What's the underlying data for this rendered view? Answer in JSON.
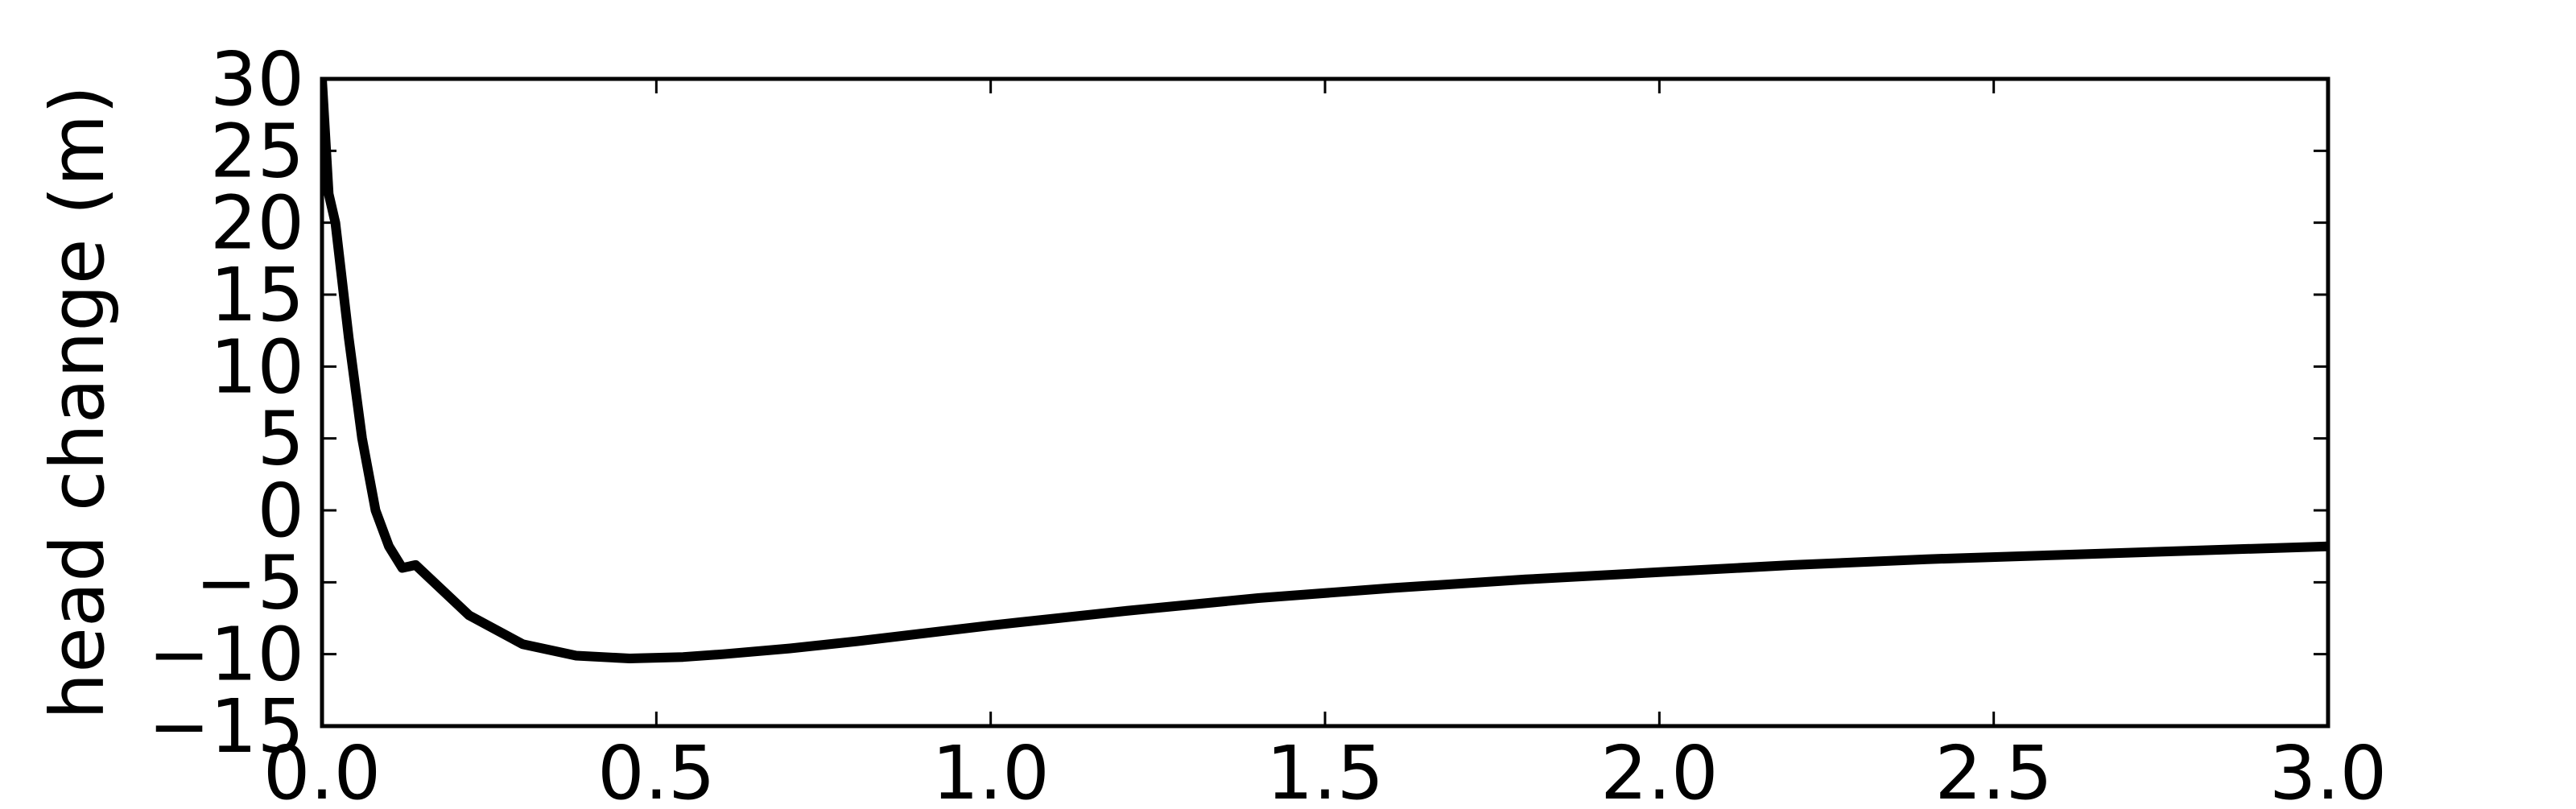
{
  "chart_data": {
    "type": "line",
    "title": "",
    "xlabel": "",
    "ylabel": "head change (m)",
    "xlim": [
      0.0,
      3.0
    ],
    "ylim": [
      -15,
      30
    ],
    "xticks": [
      0.0,
      0.5,
      1.0,
      1.5,
      2.0,
      2.5,
      3.0
    ],
    "xtick_labels": [
      "0.0",
      "0.5",
      "1.0",
      "1.5",
      "2.0",
      "2.5",
      "3.0"
    ],
    "yticks": [
      -15,
      -10,
      -5,
      0,
      5,
      10,
      15,
      20,
      25,
      30
    ],
    "ytick_labels": [
      "−15",
      "−10",
      "−5",
      "0",
      "5",
      "10",
      "15",
      "20",
      "25",
      "30"
    ],
    "grid": false,
    "legend": "none",
    "series": [
      {
        "color": "#000000",
        "x": [
          0.0,
          0.01,
          0.02,
          0.04,
          0.06,
          0.08,
          0.1,
          0.12,
          0.14,
          0.22,
          0.3,
          0.38,
          0.46,
          0.54,
          0.6,
          0.7,
          0.8,
          1.0,
          1.2,
          1.4,
          1.6,
          1.8,
          2.0,
          2.2,
          2.4,
          2.6,
          2.8,
          3.0
        ],
        "y": [
          30.0,
          22.0,
          20.0,
          12.0,
          5.0,
          0.0,
          -2.5,
          -4.0,
          -3.8,
          -7.3,
          -9.3,
          -10.1,
          -10.3,
          -10.2,
          -10.0,
          -9.6,
          -9.1,
          -8.0,
          -7.0,
          -6.1,
          -5.4,
          -4.8,
          -4.3,
          -3.8,
          -3.4,
          -3.1,
          -2.8,
          -2.5
        ]
      }
    ]
  }
}
